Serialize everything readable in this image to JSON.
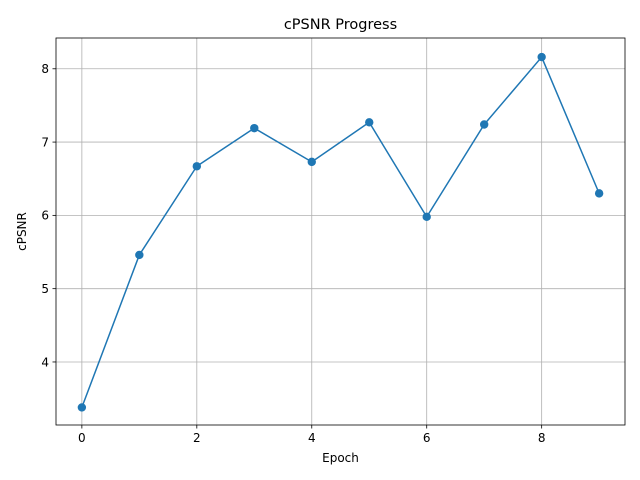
{
  "chart_data": {
    "type": "line",
    "title": "cPSNR Progress",
    "xlabel": "Epoch",
    "ylabel": "cPSNR",
    "x": [
      0,
      1,
      2,
      3,
      4,
      5,
      6,
      7,
      8,
      9
    ],
    "series": [
      {
        "values": [
          3.38,
          5.46,
          6.67,
          7.19,
          6.73,
          7.27,
          5.98,
          7.24,
          8.16,
          6.3
        ]
      }
    ],
    "xlim": [
      -0.45,
      9.45
    ],
    "ylim": [
      3.14,
      8.42
    ],
    "xticks": [
      0,
      2,
      4,
      6,
      8
    ],
    "yticks": [
      4,
      5,
      6,
      7,
      8
    ],
    "grid": true,
    "marker": "circle",
    "colors": {
      "line": "#1f77b4",
      "grid": "#b0b0b0",
      "axis": "#000000"
    }
  }
}
